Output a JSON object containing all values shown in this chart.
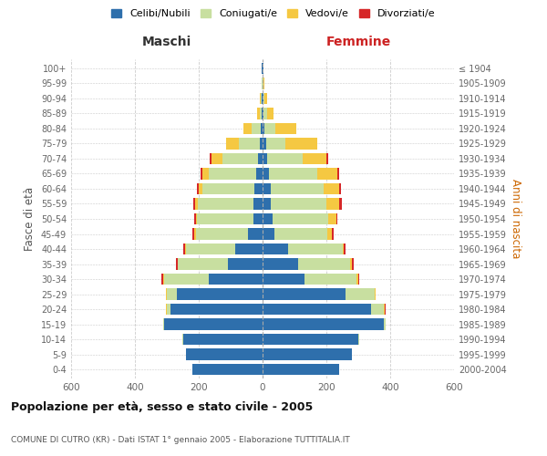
{
  "age_groups": [
    "0-4",
    "5-9",
    "10-14",
    "15-19",
    "20-24",
    "25-29",
    "30-34",
    "35-39",
    "40-44",
    "45-49",
    "50-54",
    "55-59",
    "60-64",
    "65-69",
    "70-74",
    "75-79",
    "80-84",
    "85-89",
    "90-94",
    "95-99",
    "100+"
  ],
  "birth_years": [
    "2000-2004",
    "1995-1999",
    "1990-1994",
    "1985-1989",
    "1980-1984",
    "1975-1979",
    "1970-1974",
    "1965-1969",
    "1960-1964",
    "1955-1959",
    "1950-1954",
    "1945-1949",
    "1940-1944",
    "1935-1939",
    "1930-1934",
    "1925-1929",
    "1920-1924",
    "1915-1919",
    "1910-1914",
    "1905-1909",
    "≤ 1904"
  ],
  "maschi": {
    "celibi": [
      220,
      240,
      250,
      310,
      290,
      270,
      170,
      110,
      85,
      45,
      30,
      28,
      25,
      20,
      15,
      10,
      5,
      2,
      2,
      1,
      2
    ],
    "coniugati": [
      0,
      0,
      2,
      2,
      10,
      30,
      140,
      155,
      155,
      165,
      175,
      175,
      165,
      150,
      110,
      65,
      30,
      8,
      5,
      2,
      1
    ],
    "vedovi": [
      0,
      0,
      0,
      0,
      2,
      2,
      2,
      2,
      3,
      4,
      5,
      8,
      10,
      20,
      35,
      40,
      25,
      8,
      3,
      1,
      0
    ],
    "divorziati": [
      0,
      0,
      0,
      0,
      2,
      2,
      5,
      5,
      5,
      5,
      5,
      5,
      5,
      5,
      5,
      0,
      0,
      0,
      0,
      0,
      0
    ]
  },
  "femmine": {
    "nubili": [
      240,
      280,
      300,
      380,
      340,
      260,
      130,
      110,
      80,
      38,
      30,
      25,
      25,
      20,
      15,
      10,
      5,
      3,
      2,
      1,
      2
    ],
    "coniugate": [
      0,
      0,
      2,
      5,
      40,
      90,
      165,
      165,
      170,
      165,
      175,
      175,
      165,
      150,
      110,
      60,
      35,
      10,
      5,
      2,
      1
    ],
    "vedove": [
      0,
      0,
      0,
      0,
      3,
      3,
      5,
      5,
      5,
      15,
      25,
      40,
      50,
      65,
      75,
      100,
      65,
      20,
      8,
      2,
      1
    ],
    "divorziate": [
      0,
      0,
      0,
      0,
      2,
      2,
      3,
      5,
      5,
      5,
      5,
      8,
      5,
      5,
      5,
      0,
      0,
      0,
      0,
      0,
      0
    ]
  },
  "colors": {
    "celibi": "#2e6fac",
    "coniugati": "#c8dfa0",
    "vedovi": "#f5c842",
    "divorziati": "#d62728"
  },
  "legend_labels": [
    "Celibi/Nubili",
    "Coniugati/e",
    "Vedovi/e",
    "Divorziati/e"
  ],
  "title": "Popolazione per età, sesso e stato civile - 2005",
  "subtitle": "COMUNE DI CUTRO (KR) - Dati ISTAT 1° gennaio 2005 - Elaborazione TUTTITALIA.IT",
  "ylabel_left": "Fasce di età",
  "ylabel_right": "Anni di nascita",
  "xlabel_left": "Maschi",
  "xlabel_right": "Femmine",
  "xlim": 600,
  "bg_color": "#ffffff",
  "grid_color": "#cccccc",
  "bar_height": 0.75
}
